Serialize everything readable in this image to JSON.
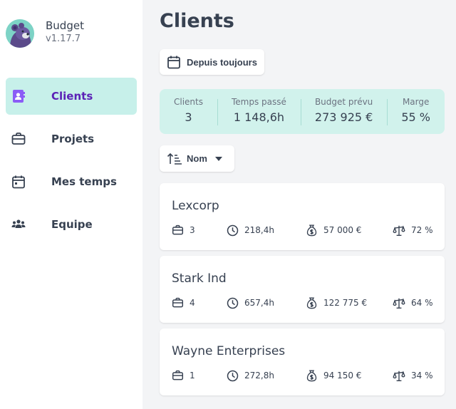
{
  "app": {
    "name": "Budget",
    "version": "v1.17.7"
  },
  "sidebar": {
    "items": [
      {
        "label": "Clients",
        "icon": "contacts-icon",
        "active": true
      },
      {
        "label": "Projets",
        "icon": "briefcase-icon"
      },
      {
        "label": "Mes temps",
        "icon": "calendar-icon"
      },
      {
        "label": "Equipe",
        "icon": "team-icon"
      }
    ]
  },
  "main": {
    "title": "Clients",
    "period_button": "Depuis toujours",
    "stats": [
      {
        "label": "Clients",
        "value": "3"
      },
      {
        "label": "Temps passé",
        "value": "1 148,6h"
      },
      {
        "label": "Budget prévu",
        "value": "273 925 €"
      },
      {
        "label": "Marge",
        "value": "55 %"
      }
    ],
    "sort_label": "Nom",
    "clients": [
      {
        "name": "Lexcorp",
        "projects": "3",
        "time": "218,4h",
        "budget": "57 000 €",
        "margin": "72 %"
      },
      {
        "name": "Stark Ind",
        "projects": "4",
        "time": "657,4h",
        "budget": "122 775 €",
        "margin": "64 %"
      },
      {
        "name": "Wayne Enterprises",
        "projects": "1",
        "time": "272,8h",
        "budget": "94 150 €",
        "margin": "34 %"
      }
    ]
  },
  "colors": {
    "accent": "#5b21b6",
    "active_bg": "#c7f0ea",
    "stats_bg": "#d1f2ec"
  }
}
